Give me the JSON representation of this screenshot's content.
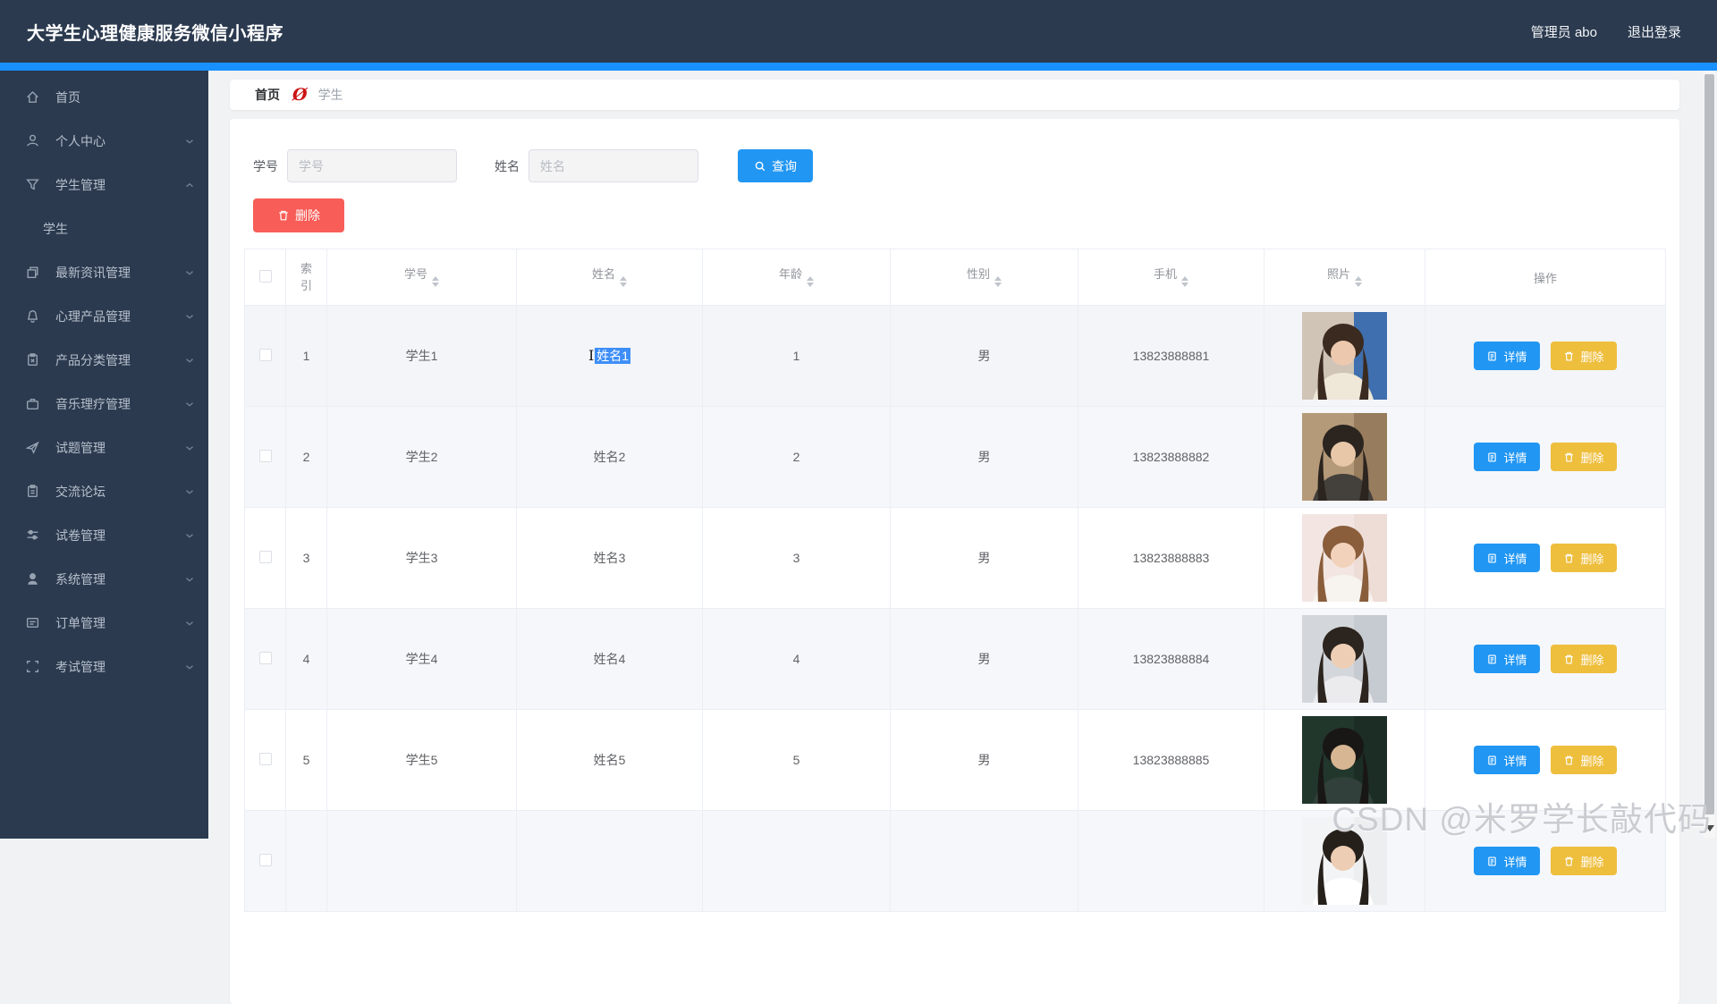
{
  "app": {
    "title": "大学生心理健康服务微信小程序",
    "admin_label": "管理员 abo",
    "logout_label": "退出登录"
  },
  "colors": {
    "topbar": "#2b3a4f",
    "accent_blue": "#1890ff",
    "button_blue": "#2196f3",
    "button_red": "#f85d57",
    "button_yellow": "#eebe3d",
    "selection_blue": "#3e8ef7"
  },
  "sidebar": {
    "items": [
      {
        "name": "home",
        "icon": "home-icon",
        "label": "首页",
        "chevron": "none",
        "child": false
      },
      {
        "name": "profile",
        "icon": "user-icon",
        "label": "个人中心",
        "chevron": "down",
        "child": false
      },
      {
        "name": "student-mgmt",
        "icon": "filter-icon",
        "label": "学生管理",
        "chevron": "up",
        "child": false
      },
      {
        "name": "student",
        "icon": "",
        "label": "学生",
        "chevron": "none",
        "child": true
      },
      {
        "name": "news-mgmt",
        "icon": "copy-icon",
        "label": "最新资讯管理",
        "chevron": "down",
        "child": false
      },
      {
        "name": "psych-product-mgmt",
        "icon": "bell-icon",
        "label": "心理产品管理",
        "chevron": "down",
        "child": false
      },
      {
        "name": "product-category-mgmt",
        "icon": "clipboard-x-icon",
        "label": "产品分类管理",
        "chevron": "down",
        "child": false
      },
      {
        "name": "music-therapy-mgmt",
        "icon": "briefcase-icon",
        "label": "音乐理疗管理",
        "chevron": "down",
        "child": false
      },
      {
        "name": "question-mgmt",
        "icon": "send-icon",
        "label": "试题管理",
        "chevron": "down",
        "child": false
      },
      {
        "name": "forum",
        "icon": "clipboard-icon",
        "label": "交流论坛",
        "chevron": "down",
        "child": false
      },
      {
        "name": "exam-paper-mgmt",
        "icon": "sliders-icon",
        "label": "试卷管理",
        "chevron": "down",
        "child": false
      },
      {
        "name": "system-mgmt",
        "icon": "user-badge-icon",
        "label": "系统管理",
        "chevron": "down",
        "child": false
      },
      {
        "name": "order-mgmt",
        "icon": "card-icon",
        "label": "订单管理",
        "chevron": "down",
        "child": false
      },
      {
        "name": "exam-mgmt",
        "icon": "scan-icon",
        "label": "考试管理",
        "chevron": "down",
        "child": false
      }
    ]
  },
  "breadcrumb": {
    "home": "首页",
    "separator_glyph": "Ø",
    "current": "学生"
  },
  "search": {
    "id_label": "学号",
    "id_placeholder": "学号",
    "id_value": "",
    "name_label": "姓名",
    "name_placeholder": "姓名",
    "name_value": "",
    "query_label": "查询"
  },
  "toolbar": {
    "delete_label": "删除"
  },
  "table": {
    "headers": [
      {
        "label": "索引",
        "sortable": false
      },
      {
        "label": "学号",
        "sortable": true
      },
      {
        "label": "姓名",
        "sortable": true
      },
      {
        "label": "年龄",
        "sortable": true
      },
      {
        "label": "性别",
        "sortable": true
      },
      {
        "label": "手机",
        "sortable": true
      },
      {
        "label": "照片",
        "sortable": true
      },
      {
        "label": "操作",
        "sortable": false
      }
    ]
  },
  "row_actions": {
    "detail": "详情",
    "remove": "删除"
  },
  "students": [
    {
      "index": "1",
      "student_no": "学生1",
      "name": "姓名1",
      "name_selected": true,
      "hovered": true,
      "age": "1",
      "gender": "男",
      "phone": "13823888881",
      "photo": {
        "bg": "#cfc4b6",
        "bg2": "#3f6fae",
        "hair": "#3a2a20",
        "skin": "#ecc9ae",
        "cloth": "#efe7d8"
      }
    },
    {
      "index": "2",
      "student_no": "学生2",
      "name": "姓名2",
      "name_selected": false,
      "hovered": false,
      "age": "2",
      "gender": "男",
      "phone": "13823888882",
      "photo": {
        "bg": "#b59a79",
        "bg2": "#977c5d",
        "hair": "#2b241f",
        "skin": "#e8c7a9",
        "cloth": "#44403c"
      }
    },
    {
      "index": "3",
      "student_no": "学生3",
      "name": "姓名3",
      "name_selected": false,
      "hovered": false,
      "age": "3",
      "gender": "男",
      "phone": "13823888883",
      "photo": {
        "bg": "#f3e6e2",
        "bg2": "#eedcd6",
        "hair": "#8a5d3b",
        "skin": "#f2d2ba",
        "cloth": "#f7f3ee"
      }
    },
    {
      "index": "4",
      "student_no": "学生4",
      "name": "姓名4",
      "name_selected": false,
      "hovered": false,
      "age": "4",
      "gender": "男",
      "phone": "13823888884",
      "photo": {
        "bg": "#d3d7db",
        "bg2": "#c6cbd1",
        "hair": "#2c241e",
        "skin": "#eecfb6",
        "cloth": "#ebebee"
      }
    },
    {
      "index": "5",
      "student_no": "学生5",
      "name": "姓名5",
      "name_selected": false,
      "hovered": false,
      "age": "5",
      "gender": "男",
      "phone": "13823888885",
      "photo": {
        "bg": "#22372c",
        "bg2": "#1b2d24",
        "hair": "#191715",
        "skin": "#d7b693",
        "cloth": "#31403a"
      }
    },
    {
      "index": "",
      "student_no": "",
      "name": "",
      "name_selected": false,
      "hovered": false,
      "age": "",
      "gender": "",
      "phone": "",
      "photo": {
        "bg": "#f3f4f5",
        "bg2": "#eceeef",
        "hair": "#26201b",
        "skin": "#edcdb3",
        "cloth": "#ffffff"
      }
    }
  ],
  "watermark": "CSDN @米罗学长敲代码"
}
